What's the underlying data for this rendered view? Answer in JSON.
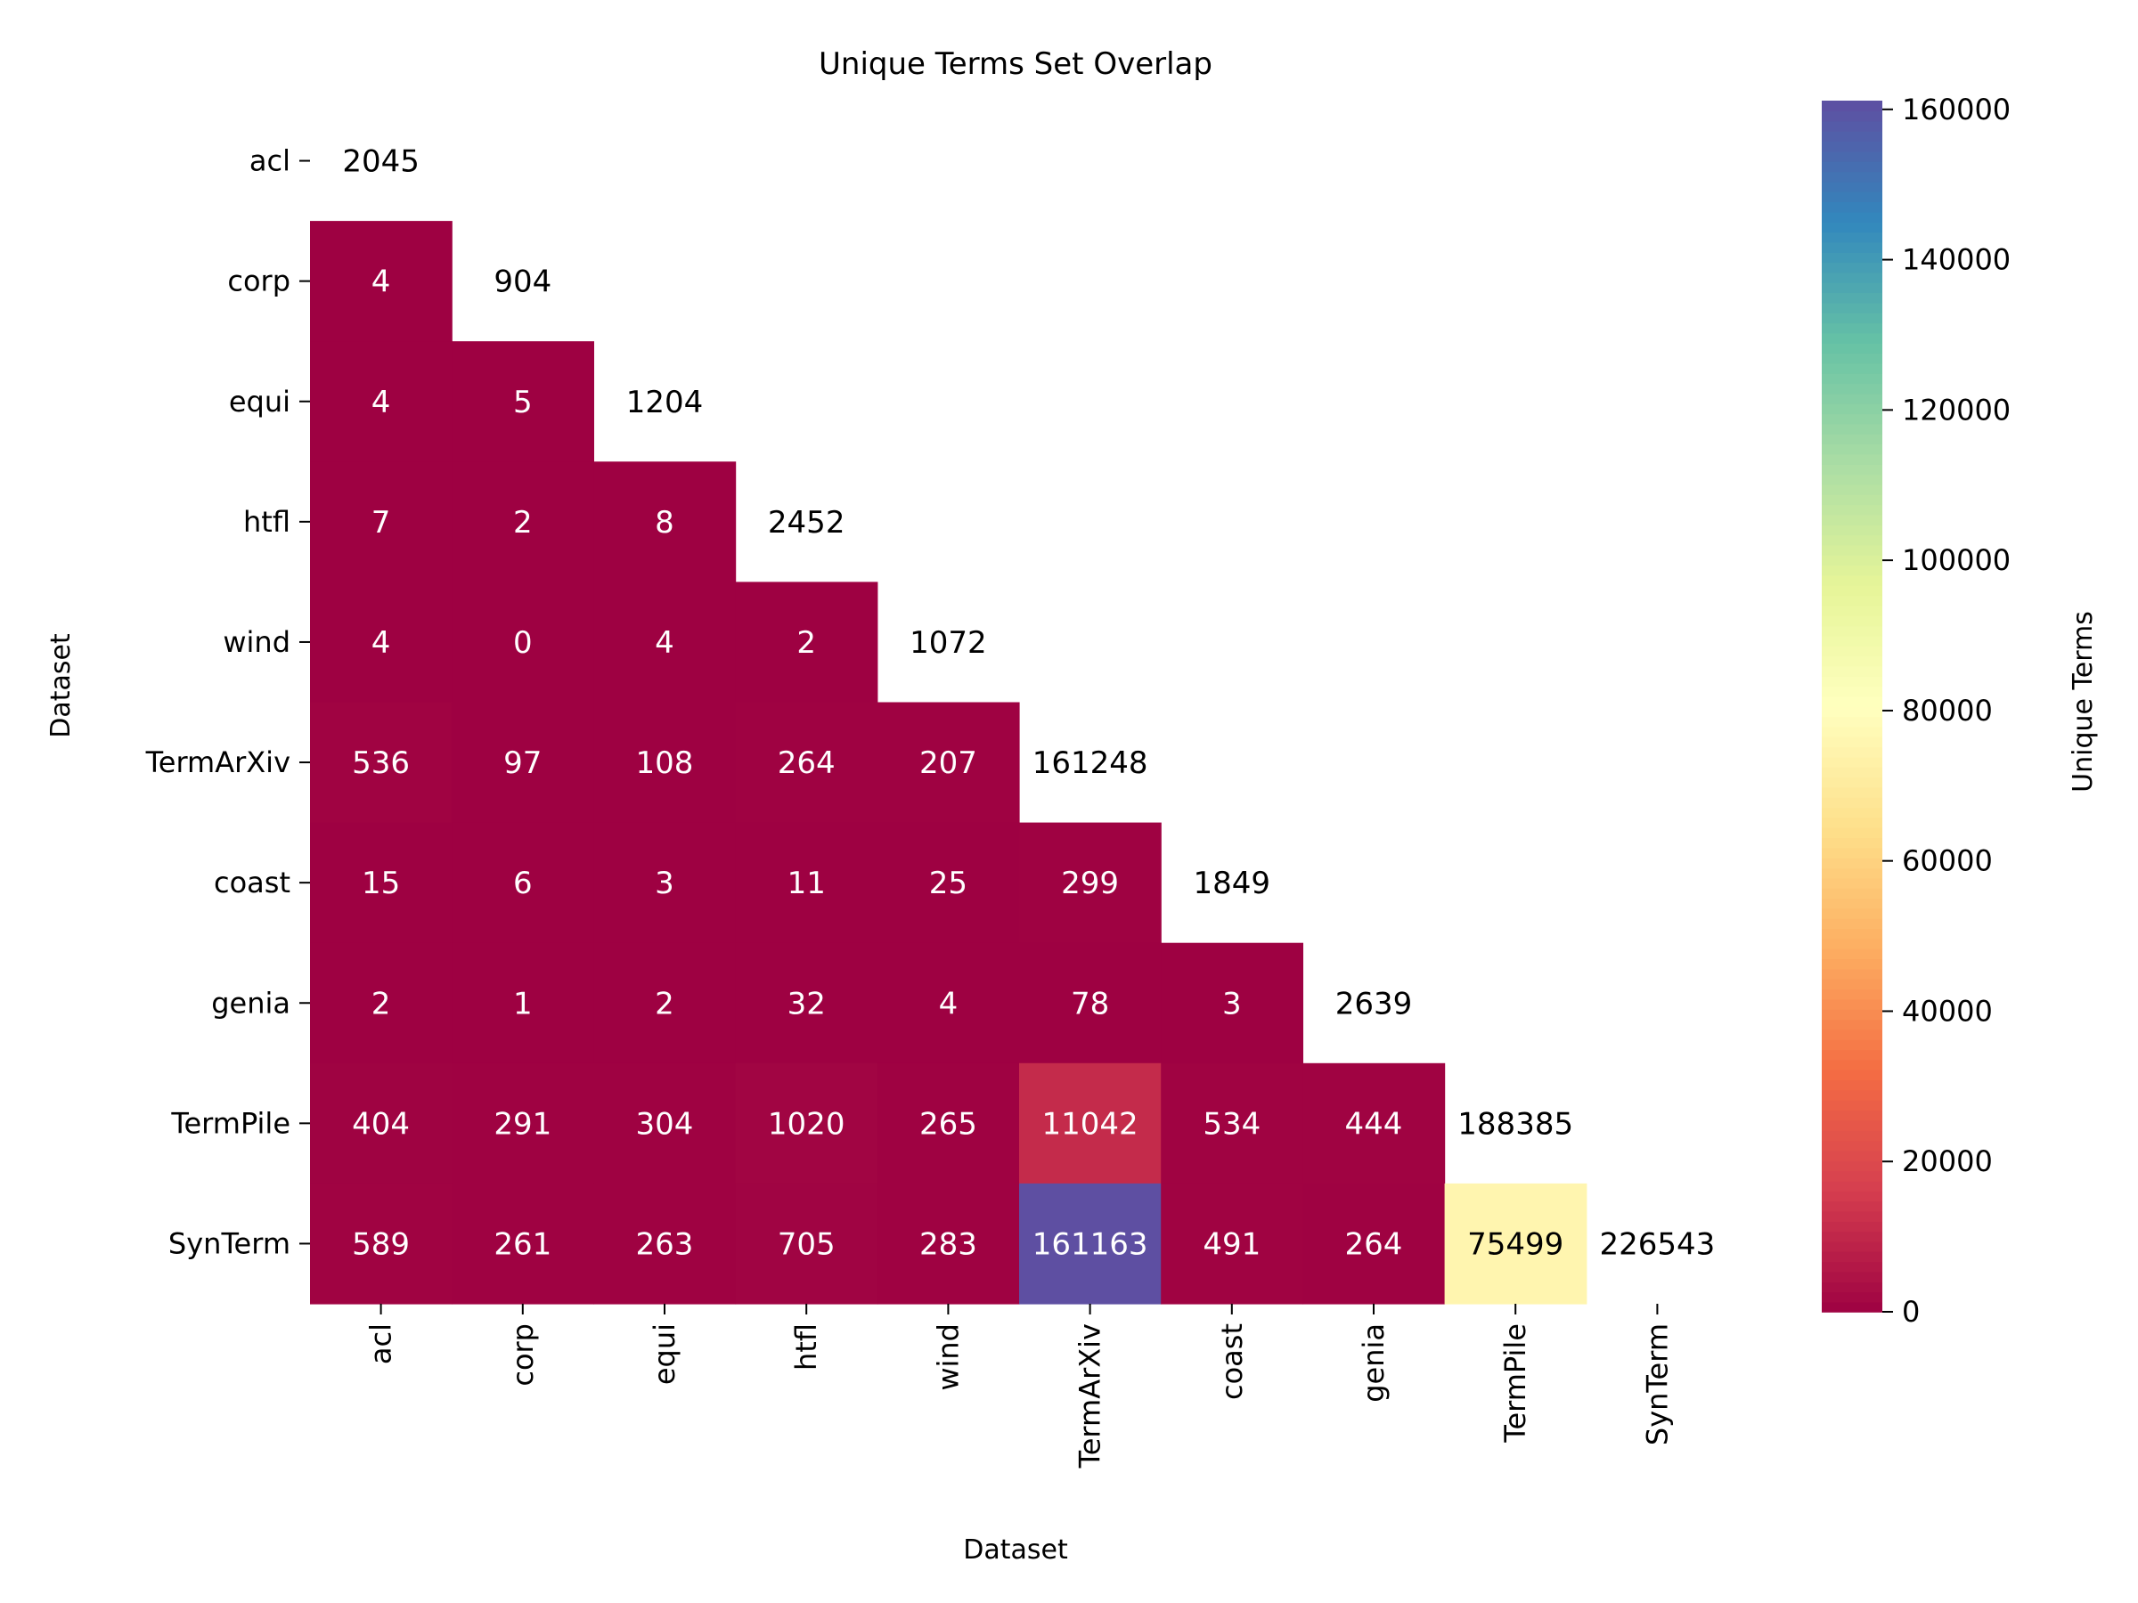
{
  "chart_data": {
    "type": "heatmap",
    "title": "Unique Terms Set Overlap",
    "xlabel": "Dataset",
    "ylabel": "Dataset",
    "labels": [
      "acl",
      "corp",
      "equi",
      "htfl",
      "wind",
      "TermArXiv",
      "coast",
      "genia",
      "TermPile",
      "SynTerm"
    ],
    "matrix": [
      [
        2045
      ],
      [
        4,
        904
      ],
      [
        4,
        5,
        1204
      ],
      [
        7,
        2,
        8,
        2452
      ],
      [
        4,
        0,
        4,
        2,
        1072
      ],
      [
        536,
        97,
        108,
        264,
        207,
        161248
      ],
      [
        15,
        6,
        3,
        11,
        25,
        299,
        1849
      ],
      [
        2,
        1,
        2,
        32,
        4,
        78,
        3,
        2639
      ],
      [
        404,
        291,
        304,
        1020,
        265,
        11042,
        534,
        444,
        188385
      ],
      [
        589,
        261,
        263,
        705,
        283,
        161163,
        491,
        264,
        75499,
        226543
      ]
    ],
    "mask": "diagonal cells not colored",
    "colormap": "Spectral",
    "vmin": 0,
    "vmax": 161163,
    "colorbar": {
      "label": "Unique Terms",
      "ticks": [
        0,
        20000,
        40000,
        60000,
        80000,
        100000,
        120000,
        140000,
        160000
      ]
    }
  }
}
